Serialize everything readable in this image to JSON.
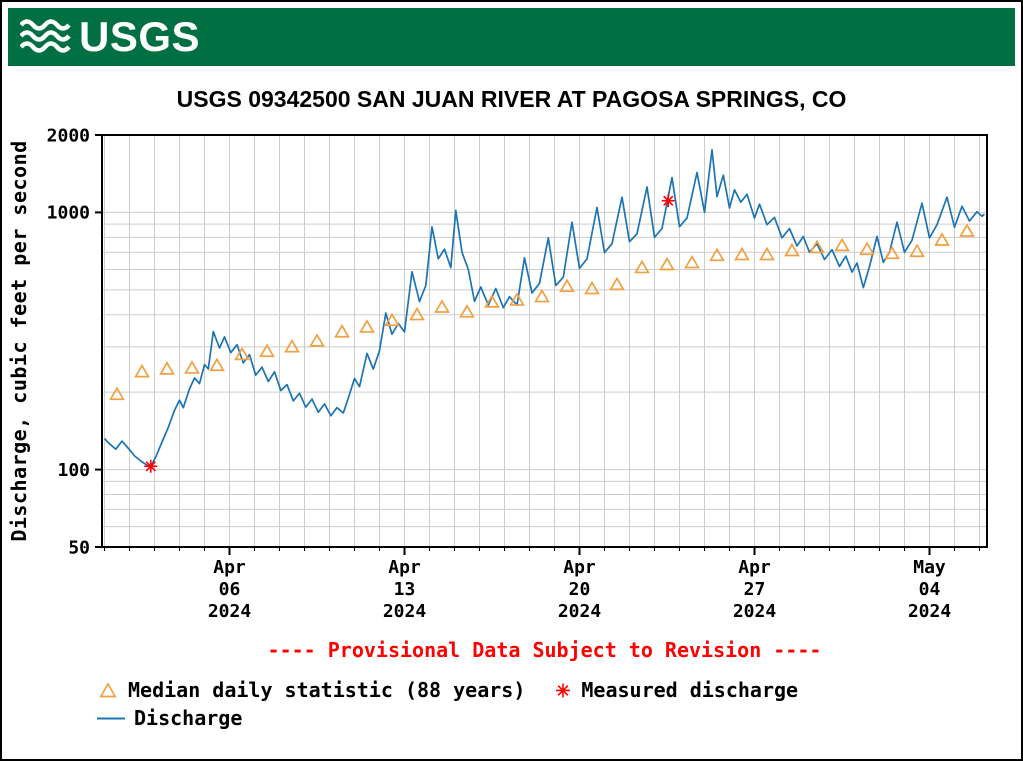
{
  "header": {
    "logo_text": "USGS",
    "background": "#006F41",
    "text_color": "#FFFFFF"
  },
  "title": "USGS 09342500 SAN JUAN RIVER AT PAGOSA SPRINGS, CO",
  "provisional_notice": "---- Provisional Data Subject to Revision ----",
  "provisional_color": "#FF0000",
  "legend": {
    "median_label": "Median daily statistic (88 years)",
    "measured_label": "Measured discharge",
    "discharge_label": "Discharge"
  },
  "chart_data": {
    "type": "line",
    "title": "USGS 09342500 SAN JUAN RIVER AT PAGOSA SPRINGS, CO",
    "xlabel": "",
    "ylabel": "Discharge, cubic feet per second",
    "y_scale": "log",
    "ylim": [
      50,
      2000
    ],
    "xlim": [
      -0.1,
      35.3
    ],
    "x_unit": "days since 2024-04-01 00:00",
    "grid": true,
    "gridline_color": "#cccccc",
    "y_ticks": [
      {
        "value": 2000,
        "label": "2000"
      },
      {
        "value": 1000,
        "label": "1000"
      },
      {
        "value": 100,
        "label": "100"
      },
      {
        "value": 50,
        "label": "50"
      }
    ],
    "x_ticks": [
      {
        "day": 5,
        "label_lines": [
          "Apr",
          "06",
          "2024"
        ]
      },
      {
        "day": 12,
        "label_lines": [
          "Apr",
          "13",
          "2024"
        ]
      },
      {
        "day": 19,
        "label_lines": [
          "Apr",
          "20",
          "2024"
        ]
      },
      {
        "day": 26,
        "label_lines": [
          "Apr",
          "27",
          "2024"
        ]
      },
      {
        "day": 33,
        "label_lines": [
          "May",
          "04",
          "2024"
        ]
      }
    ],
    "series": [
      {
        "id": "discharge",
        "name": "Discharge",
        "type": "line",
        "color": "#1C74B4",
        "units": "cubic feet per second",
        "points": [
          [
            0,
            132
          ],
          [
            0.2,
            126
          ],
          [
            0.45,
            120
          ],
          [
            0.7,
            129
          ],
          [
            0.95,
            121
          ],
          [
            1.2,
            113
          ],
          [
            1.45,
            108
          ],
          [
            1.7,
            104
          ],
          [
            1.85,
            103
          ],
          [
            2.05,
            112
          ],
          [
            2.3,
            128
          ],
          [
            2.55,
            146
          ],
          [
            2.8,
            170
          ],
          [
            3.0,
            186
          ],
          [
            3.15,
            174
          ],
          [
            3.4,
            206
          ],
          [
            3.6,
            227
          ],
          [
            3.8,
            216
          ],
          [
            4.0,
            256
          ],
          [
            4.15,
            246
          ],
          [
            4.35,
            344
          ],
          [
            4.6,
            297
          ],
          [
            4.8,
            328
          ],
          [
            5.05,
            285
          ],
          [
            5.3,
            306
          ],
          [
            5.55,
            260
          ],
          [
            5.8,
            280
          ],
          [
            6.05,
            233
          ],
          [
            6.3,
            250
          ],
          [
            6.55,
            220
          ],
          [
            6.8,
            240
          ],
          [
            7.05,
            203
          ],
          [
            7.3,
            214
          ],
          [
            7.55,
            185
          ],
          [
            7.8,
            198
          ],
          [
            8.05,
            175
          ],
          [
            8.3,
            188
          ],
          [
            8.55,
            167
          ],
          [
            8.8,
            180
          ],
          [
            9.05,
            162
          ],
          [
            9.3,
            174
          ],
          [
            9.55,
            166
          ],
          [
            9.8,
            196
          ],
          [
            10,
            226
          ],
          [
            10.2,
            210
          ],
          [
            10.5,
            283
          ],
          [
            10.75,
            246
          ],
          [
            11,
            290
          ],
          [
            11.25,
            406
          ],
          [
            11.5,
            336
          ],
          [
            11.75,
            370
          ],
          [
            12,
            343
          ],
          [
            12.3,
            588
          ],
          [
            12.6,
            450
          ],
          [
            12.85,
            520
          ],
          [
            13.1,
            878
          ],
          [
            13.35,
            660
          ],
          [
            13.6,
            720
          ],
          [
            13.85,
            610
          ],
          [
            14.05,
            1018
          ],
          [
            14.3,
            700
          ],
          [
            14.55,
            600
          ],
          [
            14.8,
            451
          ],
          [
            15.05,
            513
          ],
          [
            15.35,
            436
          ],
          [
            15.65,
            506
          ],
          [
            15.95,
            426
          ],
          [
            16.2,
            470
          ],
          [
            16.5,
            436
          ],
          [
            16.8,
            666
          ],
          [
            17.1,
            486
          ],
          [
            17.4,
            530
          ],
          [
            17.75,
            796
          ],
          [
            18.05,
            520
          ],
          [
            18.35,
            560
          ],
          [
            18.7,
            916
          ],
          [
            19,
            606
          ],
          [
            19.3,
            660
          ],
          [
            19.7,
            1046
          ],
          [
            20,
            698
          ],
          [
            20.3,
            756
          ],
          [
            20.7,
            1146
          ],
          [
            21,
            770
          ],
          [
            21.3,
            826
          ],
          [
            21.7,
            1256
          ],
          [
            22,
            800
          ],
          [
            22.3,
            866
          ],
          [
            22.7,
            1366
          ],
          [
            23,
            880
          ],
          [
            23.3,
            950
          ],
          [
            23.7,
            1430
          ],
          [
            24,
            1000
          ],
          [
            24.3,
            1750
          ],
          [
            24.5,
            1152
          ],
          [
            24.75,
            1396
          ],
          [
            25,
            1040
          ],
          [
            25.2,
            1226
          ],
          [
            25.45,
            1096
          ],
          [
            25.7,
            1176
          ],
          [
            26,
            950
          ],
          [
            26.2,
            1076
          ],
          [
            26.5,
            896
          ],
          [
            26.8,
            956
          ],
          [
            27.1,
            796
          ],
          [
            27.4,
            866
          ],
          [
            27.7,
            740
          ],
          [
            27.95,
            806
          ],
          [
            28.2,
            700
          ],
          [
            28.5,
            756
          ],
          [
            28.8,
            656
          ],
          [
            29.1,
            716
          ],
          [
            29.4,
            616
          ],
          [
            29.65,
            676
          ],
          [
            29.9,
            586
          ],
          [
            30.1,
            636
          ],
          [
            30.35,
            510
          ],
          [
            30.6,
            616
          ],
          [
            30.9,
            806
          ],
          [
            31.15,
            640
          ],
          [
            31.4,
            700
          ],
          [
            31.7,
            916
          ],
          [
            32,
            700
          ],
          [
            32.3,
            780
          ],
          [
            32.7,
            1086
          ],
          [
            33,
            796
          ],
          [
            33.3,
            896
          ],
          [
            33.7,
            1146
          ],
          [
            34,
            876
          ],
          [
            34.3,
            1056
          ],
          [
            34.6,
            926
          ],
          [
            34.9,
            1006
          ],
          [
            35.1,
            966
          ],
          [
            35.2,
            984
          ]
        ]
      },
      {
        "id": "median",
        "name": "Median daily statistic (88 years)",
        "type": "triangle",
        "color": "#F0A040",
        "units": "cubic feet per second",
        "points": [
          [
            0.5,
            196
          ],
          [
            1.5,
            240
          ],
          [
            2.5,
            246
          ],
          [
            3.5,
            248
          ],
          [
            4.5,
            254
          ],
          [
            5.5,
            280
          ],
          [
            6.5,
            288
          ],
          [
            7.5,
            300
          ],
          [
            8.5,
            316
          ],
          [
            9.5,
            343
          ],
          [
            10.5,
            358
          ],
          [
            11.5,
            380
          ],
          [
            12.5,
            400
          ],
          [
            13.5,
            428
          ],
          [
            14.5,
            410
          ],
          [
            15.5,
            448
          ],
          [
            16.5,
            456
          ],
          [
            17.5,
            470
          ],
          [
            18.5,
            515
          ],
          [
            19.5,
            505
          ],
          [
            20.5,
            524
          ],
          [
            21.5,
            610
          ],
          [
            22.5,
            626
          ],
          [
            23.5,
            637
          ],
          [
            24.5,
            680
          ],
          [
            25.5,
            685
          ],
          [
            26.5,
            685
          ],
          [
            27.5,
            710
          ],
          [
            28.5,
            730
          ],
          [
            29.5,
            743
          ],
          [
            30.5,
            718
          ],
          [
            31.5,
            692
          ],
          [
            32.5,
            705
          ],
          [
            33.5,
            780
          ],
          [
            34.5,
            845
          ]
        ]
      },
      {
        "id": "measured",
        "name": "Measured discharge",
        "type": "asterisk",
        "color": "#FF0000",
        "units": "cubic feet per second",
        "points": [
          [
            1.85,
            103
          ],
          [
            22.55,
            1110
          ]
        ]
      }
    ]
  }
}
